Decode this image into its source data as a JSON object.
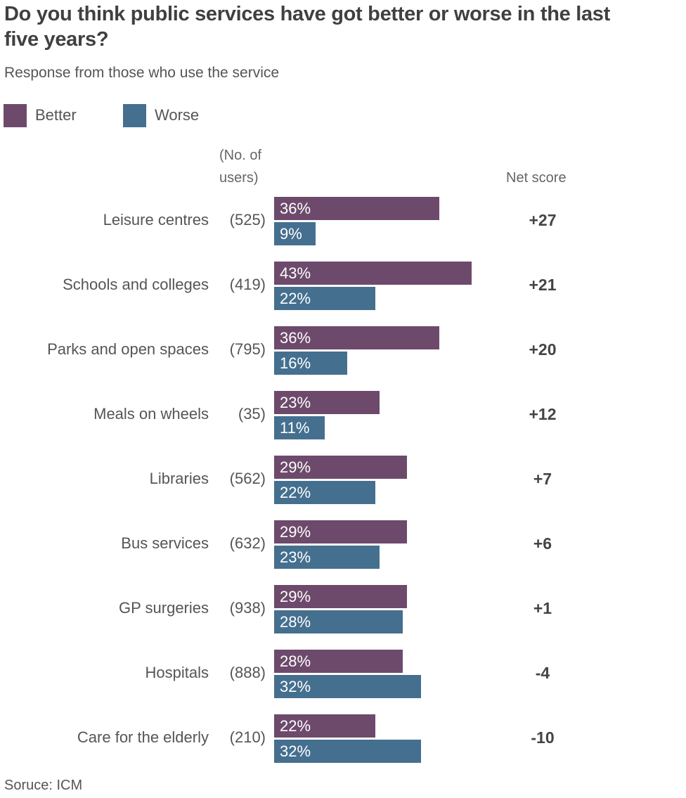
{
  "chart_data": {
    "type": "bar",
    "orientation": "horizontal",
    "title": "Do you think public services have got better or worse in the last five years?",
    "subtitle": "Response from those who use the service",
    "users_header": "(No. of users)",
    "users_header_lines": [
      "(No. of",
      "users)"
    ],
    "net_header": "Net score",
    "source": "Soruce: ICM",
    "unit": "%",
    "categories": [
      "Leisure centres",
      "Schools and colleges",
      "Parks and open spaces",
      "Meals on wheels",
      "Libraries",
      "Bus services",
      "GP surgeries",
      "Hospitals",
      "Care for the elderly"
    ],
    "users": [
      "(525)",
      "(419)",
      "(795)",
      "(35)",
      "(562)",
      "(632)",
      "(938)",
      "(888)",
      "(210)"
    ],
    "series": [
      {
        "name": "Better",
        "color": "#6d4a6b",
        "values": [
          36,
          43,
          36,
          23,
          29,
          29,
          29,
          28,
          22
        ]
      },
      {
        "name": "Worse",
        "color": "#456f8f",
        "values": [
          9,
          22,
          16,
          11,
          22,
          23,
          28,
          32,
          32
        ]
      }
    ],
    "net_scores": [
      "+27",
      "+21",
      "+20",
      "+12",
      "+7",
      "+6",
      "+1",
      "-4",
      "-10"
    ],
    "legend": "top-left",
    "grid": false
  }
}
